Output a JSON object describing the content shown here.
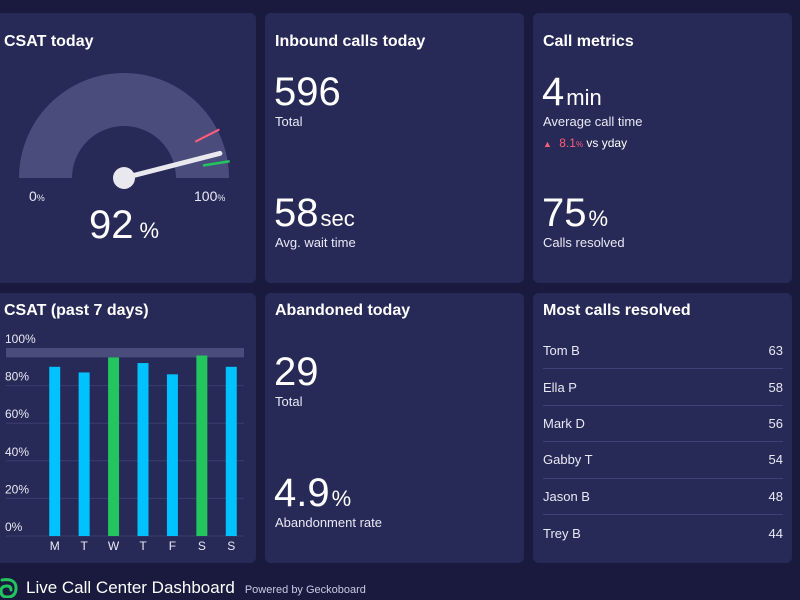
{
  "csat_today": {
    "title": "CSAT today",
    "value": "92",
    "unit": "%",
    "min_label": "0",
    "max_label": "100",
    "pct_sign": "%",
    "gauge_value": 92,
    "colors": {
      "track": "#4a4d7c",
      "needle": "#e8e8ee",
      "red_marker": "#ff5c7a",
      "green_marker": "#22c55e"
    }
  },
  "inbound_calls": {
    "title": "Inbound calls today",
    "total_value": "596",
    "total_label": "Total",
    "wait_value": "58",
    "wait_unit": "sec",
    "wait_label": "Avg. wait time"
  },
  "call_metrics": {
    "title": "Call metrics",
    "avg_value": "4",
    "avg_unit": "min",
    "avg_label": "Average call time",
    "trend_arrow": "▲",
    "trend_pct": "8.1",
    "trend_pct_sign": "%",
    "trend_text": "vs yday",
    "resolved_value": "75",
    "resolved_unit": "%",
    "resolved_label": "Calls resolved"
  },
  "abandoned": {
    "title": "Abandoned today",
    "total_value": "29",
    "total_label": "Total",
    "rate_value": "4.9",
    "rate_unit": "%",
    "rate_label": "Abandonment rate"
  },
  "most_resolved": {
    "title": "Most calls resolved",
    "rows": [
      {
        "name": "Tom B",
        "count": "63"
      },
      {
        "name": "Ella P",
        "count": "58"
      },
      {
        "name": "Mark D",
        "count": "56"
      },
      {
        "name": "Gabby T",
        "count": "54"
      },
      {
        "name": "Jason B",
        "count": "48"
      },
      {
        "name": "Trey B",
        "count": "44"
      }
    ]
  },
  "chart_data": {
    "type": "bar",
    "title": "CSAT (past 7 days)",
    "categories": [
      "M",
      "T",
      "W",
      "T",
      "F",
      "S",
      "S"
    ],
    "values": [
      90,
      87,
      95,
      92,
      86,
      96,
      90
    ],
    "highlight": [
      false,
      false,
      true,
      false,
      false,
      true,
      false
    ],
    "yticks": [
      "0%",
      "20%",
      "40%",
      "60%",
      "80%",
      "100%"
    ],
    "ylim": [
      0,
      100
    ],
    "target_band": [
      95,
      100
    ],
    "colors": {
      "normal": "#00c2ff",
      "highlight": "#22c55e",
      "band": "#4a4d7c",
      "grid": "#3a3d6e"
    }
  },
  "footer": {
    "title": "Live Call Center Dashboard",
    "powered": "Powered by Geckoboard",
    "logo_icon": "geckoboard-logo-icon"
  }
}
